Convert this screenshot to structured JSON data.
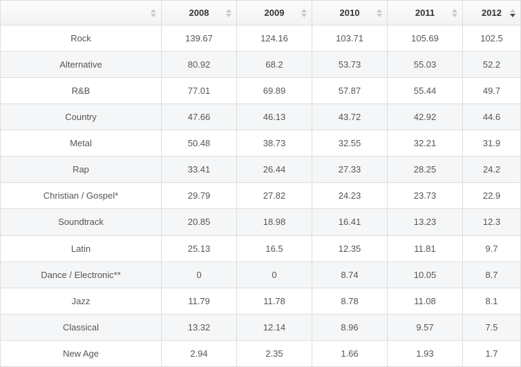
{
  "table": {
    "columns": [
      {
        "label": "",
        "sort": "none"
      },
      {
        "label": "2008",
        "sort": "none"
      },
      {
        "label": "2009",
        "sort": "none"
      },
      {
        "label": "2010",
        "sort": "none"
      },
      {
        "label": "2011",
        "sort": "none"
      },
      {
        "label": "2012",
        "sort": "desc"
      }
    ],
    "rows": [
      {
        "genre": "Rock",
        "values": [
          "139.67",
          "124.16",
          "103.71",
          "105.69",
          "102.5"
        ]
      },
      {
        "genre": "Alternative",
        "values": [
          "80.92",
          "68.2",
          "53.73",
          "55.03",
          "52.2"
        ]
      },
      {
        "genre": "R&B",
        "values": [
          "77.01",
          "69.89",
          "57.87",
          "55.44",
          "49.7"
        ]
      },
      {
        "genre": "Country",
        "values": [
          "47.66",
          "46.13",
          "43.72",
          "42.92",
          "44.6"
        ]
      },
      {
        "genre": "Metal",
        "values": [
          "50.48",
          "38.73",
          "32.55",
          "32.21",
          "31.9"
        ]
      },
      {
        "genre": "Rap",
        "values": [
          "33.41",
          "26.44",
          "27.33",
          "28.25",
          "24.2"
        ]
      },
      {
        "genre": "Christian / Gospel*",
        "values": [
          "29.79",
          "27.82",
          "24.23",
          "23.73",
          "22.9"
        ]
      },
      {
        "genre": "Soundtrack",
        "values": [
          "20.85",
          "18.98",
          "16.41",
          "13.23",
          "12.3"
        ]
      },
      {
        "genre": "Latin",
        "values": [
          "25.13",
          "16.5",
          "12.35",
          "11.81",
          "9.7"
        ]
      },
      {
        "genre": "Dance / Electronic**",
        "values": [
          "0",
          "0",
          "8.74",
          "10.05",
          "8.7"
        ]
      },
      {
        "genre": "Jazz",
        "values": [
          "11.79",
          "11.78",
          "8.78",
          "11.08",
          "8.1"
        ]
      },
      {
        "genre": "Classical",
        "values": [
          "13.32",
          "12.14",
          "8.96",
          "9.57",
          "7.5"
        ]
      },
      {
        "genre": "New Age",
        "values": [
          "2.94",
          "2.35",
          "1.66",
          "1.93",
          "1.7"
        ]
      }
    ]
  },
  "colors": {
    "border": "#dddddd",
    "row_stripe": "#f5f6f7",
    "header_text": "#333333",
    "cell_text": "#555555",
    "sort_arrow_idle": "#c8c8c8",
    "sort_arrow_active": "#39475b"
  },
  "icons": {
    "sort": "sort-arrows-icon"
  }
}
